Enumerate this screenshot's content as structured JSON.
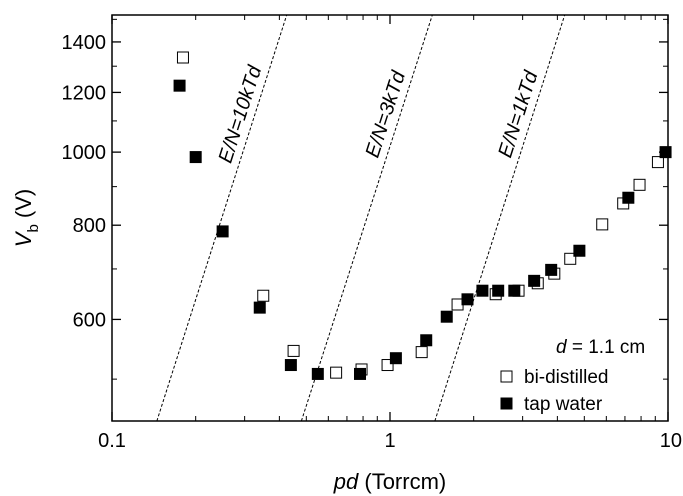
{
  "chart_data": {
    "type": "scatter",
    "x_scale": "log",
    "y_scale": "log",
    "xlim": [
      0.1,
      10
    ],
    "ylim": [
      440,
      1520
    ],
    "x_ticks": [
      {
        "value": 0.1,
        "label": "0.1"
      },
      {
        "value": 1,
        "label": "1"
      },
      {
        "value": 10,
        "label": "10"
      }
    ],
    "y_ticks": [
      {
        "value": 600,
        "label": "600"
      },
      {
        "value": 800,
        "label": "800"
      },
      {
        "value": 1000,
        "label": "1000"
      },
      {
        "value": 1200,
        "label": "1200"
      },
      {
        "value": 1400,
        "label": "1400"
      }
    ],
    "xlabel": {
      "italic": "pd",
      "rest": " (Torrcm)"
    },
    "ylabel": {
      "main": "V",
      "sub": "b",
      "rest": " (V)"
    },
    "legend": {
      "placement": "bottom-right",
      "header_italic": "d",
      "header_rest": " = 1.1 cm"
    },
    "series": [
      {
        "name": "bi-distilled",
        "marker": "open-square",
        "points": [
          [
            0.18,
            1335
          ],
          [
            0.35,
            645
          ],
          [
            0.45,
            545
          ],
          [
            0.64,
            510
          ],
          [
            0.79,
            515
          ],
          [
            0.98,
            522
          ],
          [
            1.3,
            543
          ],
          [
            1.75,
            628
          ],
          [
            2.4,
            648
          ],
          [
            2.9,
            655
          ],
          [
            3.4,
            670
          ],
          [
            3.9,
            690
          ],
          [
            4.45,
            722
          ],
          [
            5.8,
            802
          ],
          [
            6.9,
            855
          ],
          [
            7.9,
            905
          ],
          [
            9.2,
            970
          ]
        ]
      },
      {
        "name": "tap water",
        "marker": "filled-square",
        "points": [
          [
            0.175,
            1225
          ],
          [
            0.2,
            985
          ],
          [
            0.25,
            785
          ],
          [
            0.34,
            622
          ],
          [
            0.44,
            522
          ],
          [
            0.55,
            508
          ],
          [
            0.78,
            508
          ],
          [
            1.05,
            533
          ],
          [
            1.35,
            563
          ],
          [
            1.6,
            605
          ],
          [
            1.9,
            638
          ],
          [
            2.15,
            655
          ],
          [
            2.45,
            655
          ],
          [
            2.8,
            655
          ],
          [
            3.3,
            675
          ],
          [
            3.8,
            698
          ],
          [
            4.8,
            740
          ],
          [
            7.2,
            870
          ],
          [
            9.8,
            1000
          ]
        ]
      }
    ],
    "reference_lines": [
      {
        "label": "E/N=10kTd",
        "x_start": 0.145,
        "x_end": 0.425,
        "y_start": 440,
        "y_end": 1520
      },
      {
        "label": "E/N=3kTd",
        "x_start": 0.48,
        "x_end": 1.42,
        "y_start": 440,
        "y_end": 1520
      },
      {
        "label": "E/N=1kTd",
        "x_start": 1.45,
        "x_end": 4.25,
        "y_start": 440,
        "y_end": 1520
      }
    ]
  }
}
